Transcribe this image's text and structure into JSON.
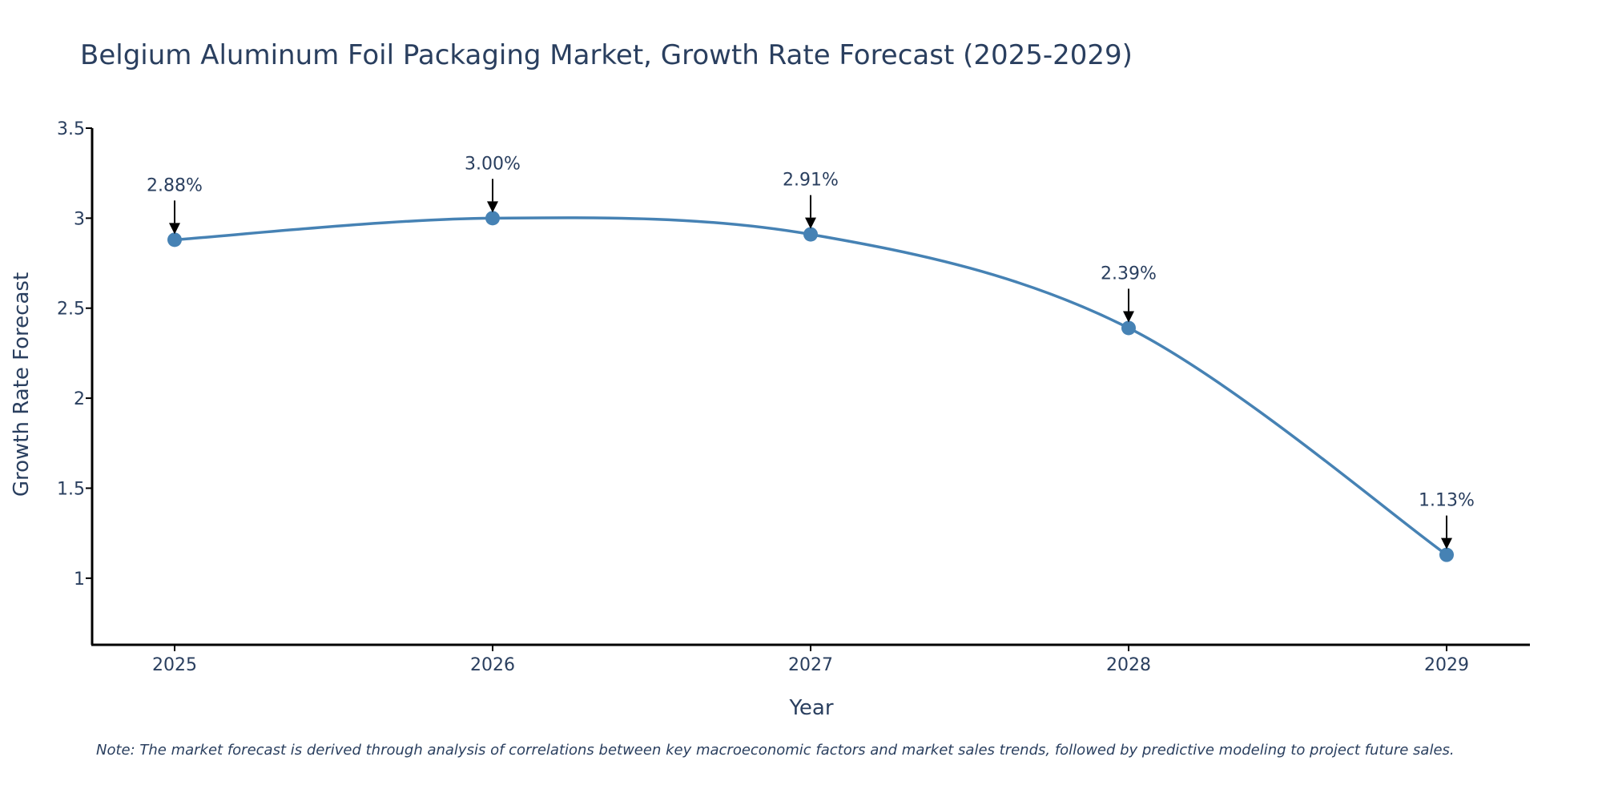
{
  "chart_data": {
    "type": "line",
    "title": "Belgium Aluminum Foil Packaging Market, Growth Rate Forecast (2025-2029)",
    "xlabel": "Year",
    "ylabel": "Growth Rate Forecast",
    "categories": [
      "2025",
      "2026",
      "2027",
      "2028",
      "2029"
    ],
    "series": [
      {
        "name": "Growth Rate Forecast",
        "values": [
          2.88,
          3.0,
          2.91,
          2.39,
          1.13
        ],
        "labels": [
          "2.88%",
          "3.00%",
          "2.91%",
          "2.39%",
          "1.13%"
        ],
        "color": "#4682b4"
      }
    ],
    "ylim": [
      0.63,
      3.5
    ],
    "yticks": [
      1,
      1.5,
      2,
      2.5,
      3,
      3.5
    ],
    "ytick_labels": [
      "1",
      "1.5",
      "2",
      "2.5",
      "3",
      "3.5"
    ],
    "grid": false,
    "line_shape": "spline"
  },
  "note": "Note: The market forecast is derived through analysis of correlations between key macroeconomic factors and market sales trends, followed by predictive modeling to project future sales.",
  "colors": {
    "line": "#4682b4",
    "text": "#2a3f5f",
    "axis": "#000000"
  }
}
